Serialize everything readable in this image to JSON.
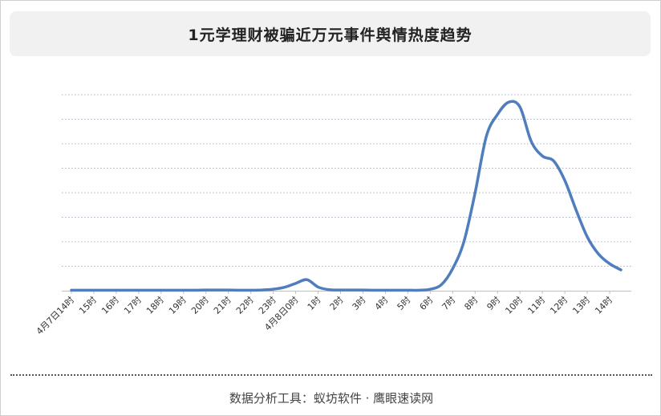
{
  "title": "1元学理财被骗近万元事件舆情热度趋势",
  "footer": "数据分析工具：蚁坊软件 · 鹰眼速读网",
  "colors": {
    "line": "#4f7dbd",
    "grid": "#9fb3cf",
    "axis": "#bfbfbf",
    "title_bg": "#f1f1f1"
  },
  "chart_data": {
    "type": "line",
    "title": "1元学理财被骗近万元事件舆情热度趋势",
    "xlabel": "",
    "ylabel": "",
    "categories": [
      "4月7日14时",
      "15时",
      "16时",
      "17时",
      "18时",
      "19时",
      "20时",
      "21时",
      "22时",
      "23时",
      "4月8日0时",
      "1时",
      "2时",
      "3时",
      "4时",
      "5时",
      "6时",
      "7时",
      "8时",
      "9时",
      "10时",
      "11时",
      "12时",
      "13时",
      "14时"
    ],
    "x": [
      0,
      1,
      2,
      3,
      4,
      5,
      6,
      7,
      8,
      9,
      10,
      11,
      12,
      13,
      14,
      15,
      16,
      17,
      18,
      19,
      20,
      21,
      22,
      23,
      24,
      25,
      26,
      27,
      28,
      29,
      30,
      31,
      32,
      33,
      34,
      35,
      36,
      37,
      38,
      39,
      40,
      41,
      42,
      43,
      44,
      45,
      46,
      47,
      48,
      49
    ],
    "series": [
      {
        "name": "",
        "values": [
          0.2,
          0.2,
          0.2,
          0.2,
          0.2,
          0.2,
          0.2,
          0.2,
          0.2,
          0.2,
          0.2,
          0.2,
          0.3,
          0.3,
          0.3,
          0.2,
          0.2,
          0.3,
          0.6,
          1.4,
          3.0,
          4.5,
          1.5,
          0.4,
          0.3,
          0.3,
          0.3,
          0.2,
          0.2,
          0.2,
          0.2,
          0.2,
          0.6,
          2.5,
          9.0,
          20.0,
          40.0,
          63.0,
          72.0,
          77.0,
          75.0,
          61.0,
          55.0,
          53.0,
          45.0,
          33.0,
          22.0,
          15.0,
          11.0,
          8.5
        ]
      }
    ],
    "ylim": [
      0,
      80
    ],
    "y_gridlines": 8,
    "grid": true,
    "y_tick_labels_shown": false,
    "legend": "none"
  }
}
